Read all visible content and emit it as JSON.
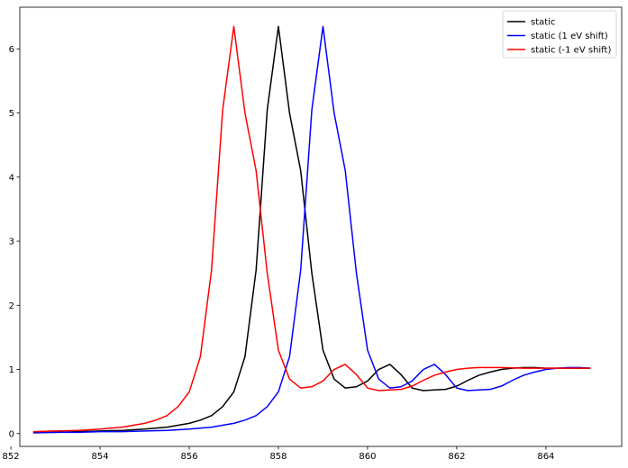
{
  "chart_data": {
    "type": "line",
    "title": "",
    "xlabel": "",
    "ylabel": "",
    "xlim": [
      852.2,
      865.7
    ],
    "ylim": [
      -0.2,
      6.65
    ],
    "xticks": [
      852,
      854,
      856,
      858,
      860,
      862,
      864
    ],
    "yticks": [
      0,
      1,
      2,
      3,
      4,
      5,
      6
    ],
    "xtick_labels": [
      "852",
      "854",
      "856",
      "858",
      "860",
      "862",
      "864"
    ],
    "ytick_labels": [
      "0",
      "1",
      "2",
      "3",
      "4",
      "5",
      "6"
    ],
    "grid": false,
    "legend": {
      "position": "top-right"
    },
    "series": [
      {
        "name": "static",
        "color": "#000000",
        "x": [
          852.5,
          853.0,
          853.5,
          854.0,
          854.5,
          855.0,
          855.5,
          856.0,
          856.25,
          856.5,
          856.75,
          857.0,
          857.25,
          857.5,
          857.75,
          858.0,
          858.25,
          858.5,
          858.75,
          859.0,
          859.25,
          859.5,
          859.75,
          860.0,
          860.25,
          860.5,
          860.75,
          861.0,
          861.25,
          861.5,
          861.75,
          862.0,
          862.25,
          862.5,
          862.75,
          863.0,
          863.25,
          863.5,
          863.75,
          864.0,
          864.25,
          864.5,
          864.75,
          865.0
        ],
        "y": [
          0.02,
          0.02,
          0.03,
          0.04,
          0.05,
          0.07,
          0.1,
          0.16,
          0.21,
          0.28,
          0.42,
          0.65,
          1.2,
          2.55,
          5.05,
          6.35,
          5.0,
          4.1,
          2.5,
          1.3,
          0.85,
          0.71,
          0.73,
          0.82,
          1.0,
          1.08,
          0.92,
          0.71,
          0.67,
          0.68,
          0.69,
          0.74,
          0.83,
          0.91,
          0.96,
          1.0,
          1.02,
          1.03,
          1.03,
          1.02,
          1.02,
          1.02,
          1.02,
          1.02
        ]
      },
      {
        "name": "static (1 eV shift)",
        "color": "#0000ff",
        "x": [
          852.5,
          853.0,
          853.5,
          854.0,
          854.5,
          855.0,
          855.5,
          856.0,
          856.5,
          857.0,
          857.25,
          857.5,
          857.75,
          858.0,
          858.25,
          858.5,
          858.75,
          859.0,
          859.25,
          859.5,
          859.75,
          860.0,
          860.25,
          860.5,
          860.75,
          861.0,
          861.25,
          861.5,
          861.75,
          862.0,
          862.25,
          862.5,
          862.75,
          863.0,
          863.25,
          863.5,
          863.75,
          864.0,
          864.25,
          864.5,
          864.75,
          865.0
        ],
        "y": [
          0.01,
          0.02,
          0.02,
          0.03,
          0.03,
          0.04,
          0.05,
          0.07,
          0.1,
          0.16,
          0.21,
          0.28,
          0.42,
          0.65,
          1.2,
          2.55,
          5.05,
          6.35,
          5.0,
          4.1,
          2.5,
          1.3,
          0.85,
          0.71,
          0.73,
          0.82,
          1.0,
          1.08,
          0.92,
          0.71,
          0.67,
          0.68,
          0.69,
          0.74,
          0.83,
          0.91,
          0.96,
          1.0,
          1.02,
          1.03,
          1.03,
          1.02
        ]
      },
      {
        "name": "static (-1 eV shift)",
        "color": "#ff0000",
        "x": [
          852.5,
          853.0,
          853.5,
          854.0,
          854.5,
          855.0,
          855.25,
          855.5,
          855.75,
          856.0,
          856.25,
          856.5,
          856.75,
          857.0,
          857.25,
          857.5,
          857.75,
          858.0,
          858.25,
          858.5,
          858.75,
          859.0,
          859.25,
          859.5,
          859.75,
          860.0,
          860.25,
          860.5,
          860.75,
          861.0,
          861.25,
          861.5,
          861.75,
          862.0,
          862.25,
          862.5,
          862.75,
          863.0,
          863.5,
          864.0,
          864.5,
          865.0
        ],
        "y": [
          0.03,
          0.04,
          0.05,
          0.07,
          0.1,
          0.16,
          0.21,
          0.28,
          0.42,
          0.65,
          1.2,
          2.55,
          5.05,
          6.35,
          5.0,
          4.1,
          2.5,
          1.3,
          0.85,
          0.71,
          0.73,
          0.82,
          1.0,
          1.08,
          0.92,
          0.71,
          0.67,
          0.68,
          0.69,
          0.74,
          0.83,
          0.91,
          0.96,
          1.0,
          1.02,
          1.03,
          1.03,
          1.03,
          1.02,
          1.02,
          1.02,
          1.02
        ]
      }
    ]
  }
}
